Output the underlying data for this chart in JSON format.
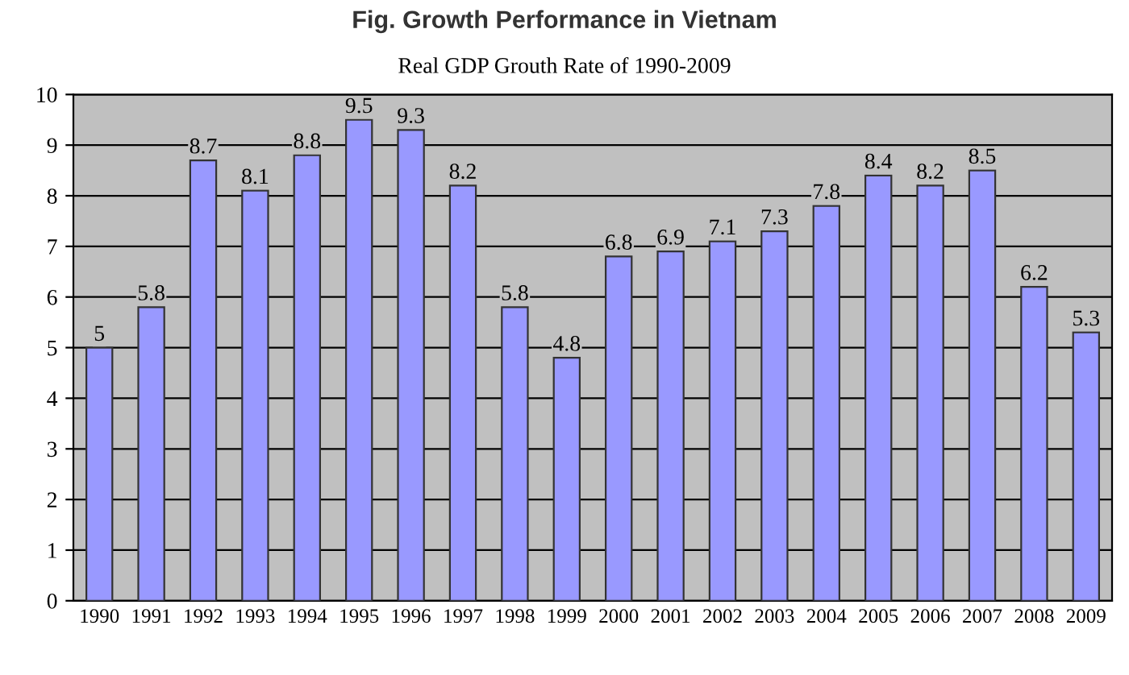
{
  "chart_data": {
    "type": "bar",
    "title": "Fig. Growth Performance in Vietnam",
    "subtitle": "Real GDP Grouth Rate of 1990-2009",
    "categories": [
      "1990",
      "1991",
      "1992",
      "1993",
      "1994",
      "1995",
      "1996",
      "1997",
      "1998",
      "1999",
      "2000",
      "2001",
      "2002",
      "2003",
      "2004",
      "2005",
      "2006",
      "2007",
      "2008",
      "2009"
    ],
    "values": [
      5,
      5.8,
      8.7,
      8.1,
      8.8,
      9.5,
      9.3,
      8.2,
      5.8,
      4.8,
      6.8,
      6.9,
      7.1,
      7.3,
      7.8,
      8.4,
      8.2,
      8.5,
      6.2,
      5.3
    ],
    "color": "#9999ff",
    "ylim": [
      0,
      10
    ],
    "yticks": [
      0,
      1,
      2,
      3,
      4,
      5,
      6,
      7,
      8,
      9,
      10
    ],
    "grid": "y",
    "data_labels": true
  }
}
